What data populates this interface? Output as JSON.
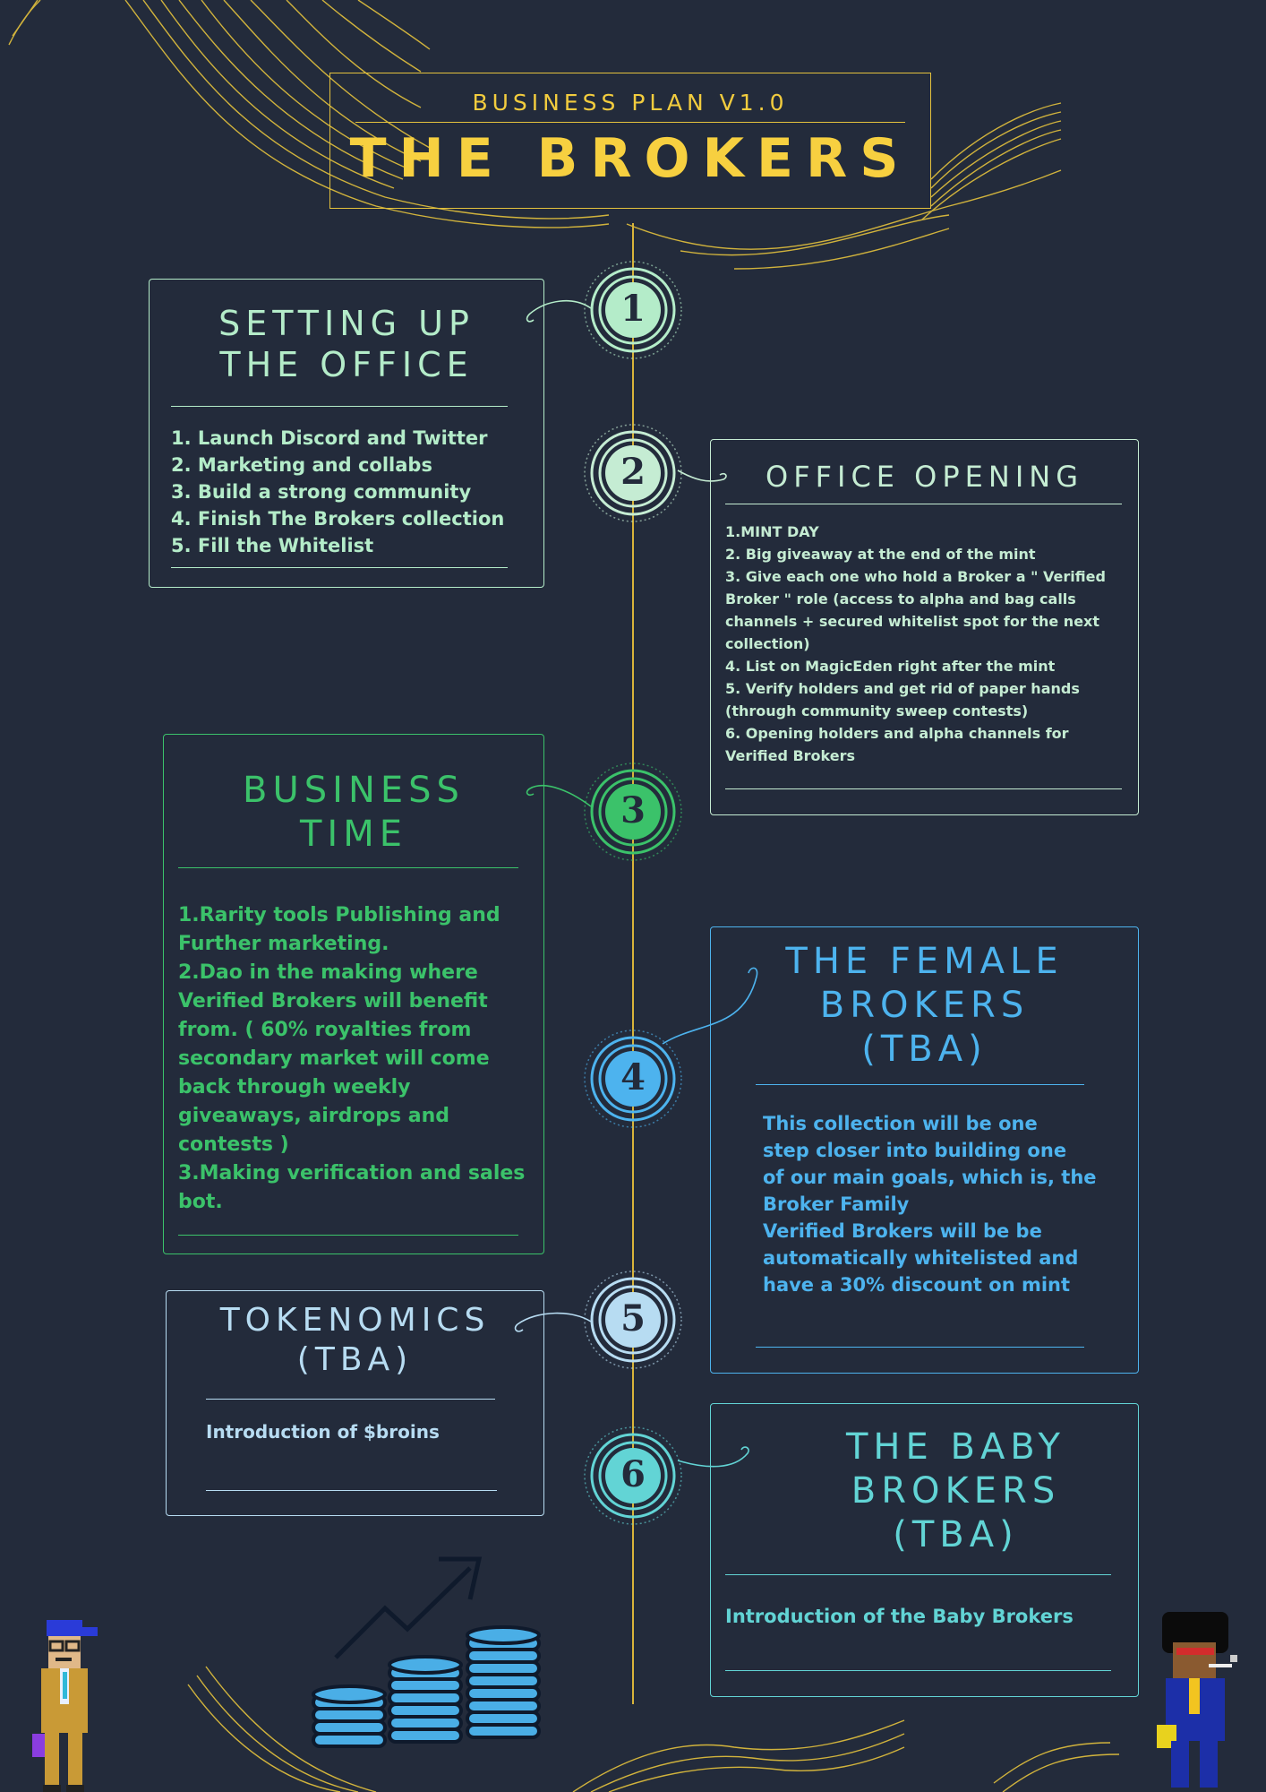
{
  "header": {
    "subtitle": "BUSINESS PLAN V1.0",
    "title": "THE BROKERS"
  },
  "colors": {
    "background": "#232b3b",
    "gold": "#f2cc3e",
    "phase1": "#b4ecc9",
    "phase2": "#c5ecd3",
    "phase3": "#3bc26a",
    "phase4": "#4db3ee",
    "phase5": "#b7dcf2",
    "phase6": "#62d4d5"
  },
  "steps": {
    "s1": {
      "number": "1",
      "title": "SETTING UP\nTHE OFFICE",
      "items": [
        "1. Launch Discord and Twitter",
        "2. Marketing and collabs",
        "3. Build a strong community",
        "4. Finish The Brokers collection",
        "5. Fill the Whitelist"
      ]
    },
    "s2": {
      "number": "2",
      "title": "OFFICE OPENING",
      "items": [
        "1.MINT DAY",
        "2. Big giveaway at the end of the mint",
        "3. Give each one who hold a Broker a \" Verified Broker \" role (access to alpha and bag calls channels + secured whitelist spot for the next collection)",
        "4. List on MagicEden right after the mint",
        "5. Verify holders and get rid of paper hands (through community sweep contests)",
        "6. Opening holders and alpha channels for Verified Brokers"
      ]
    },
    "s3": {
      "number": "3",
      "title": "BUSINESS\nTIME",
      "items": [
        "1.Rarity tools Publishing and Further marketing.",
        "2.Dao in the making where Verified Brokers will benefit from. ( 60% royalties from secondary market will come back through weekly giveaways, airdrops and contests )",
        "3.Making verification and sales bot."
      ]
    },
    "s4": {
      "number": "4",
      "title": "THE FEMALE\nBROKERS\n(TBA)",
      "body": "This collection will be one\nstep closer into building one\nof our main goals, which is, the\nBroker Family\nVerified Brokers will be be\nautomatically whitelisted and\nhave a 30% discount on mint"
    },
    "s5": {
      "number": "5",
      "title": "TOKENOMICS\n(TBA)",
      "body": "Introduction of $broins"
    },
    "s6": {
      "number": "6",
      "title": "THE BABY\nBROKERS\n(TBA)",
      "body": "Introduction of the Baby Brokers"
    }
  },
  "icons": [
    "stacked-coins-growth-icon",
    "pixel-broker-cap-character",
    "pixel-broker-afro-character"
  ]
}
